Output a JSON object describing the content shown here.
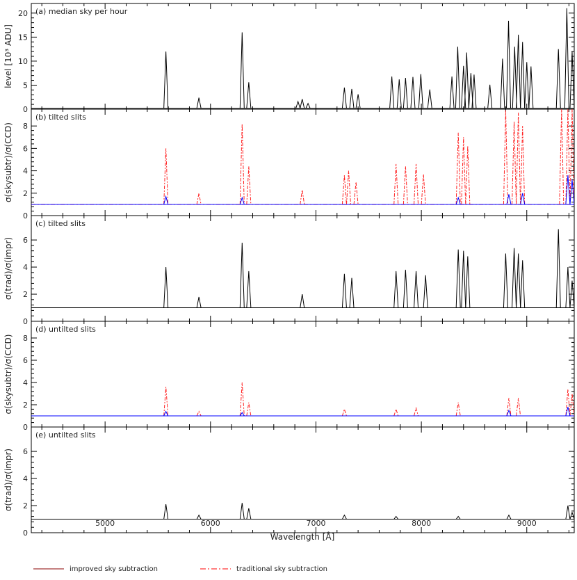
{
  "chart_data": {
    "type": "line",
    "xlabel": "Wavelength [Å]",
    "xlim": [
      4300,
      9450
    ],
    "x_ticks": [
      "5000",
      "6000",
      "7000",
      "8000",
      "9000"
    ],
    "legend": [
      {
        "label": "improved sky subtraction",
        "color": "#8b0000",
        "style": "solid"
      },
      {
        "label": "traditional sky subtraction",
        "color": "#ff0000",
        "style": "dash-dot"
      }
    ],
    "panels": [
      {
        "label": "(a) median sky per hour",
        "ylabel": "level [10³ ADU]",
        "ylim": [
          0,
          22
        ],
        "y_ticks": [
          "0",
          "5",
          "10",
          "15",
          "20"
        ],
        "continuum": 0.2,
        "series": [
          {
            "color": "#000000",
            "lines": [
              [
                5577,
                12.0
              ],
              [
                5890,
                2.4
              ],
              [
                6300,
                16.0
              ],
              [
                6363,
                5.6
              ],
              [
                6830,
                1.6
              ],
              [
                6870,
                2.1
              ],
              [
                6925,
                1.2
              ],
              [
                7270,
                4.5
              ],
              [
                7340,
                4.2
              ],
              [
                7400,
                3.1
              ],
              [
                7720,
                6.8
              ],
              [
                7790,
                6.2
              ],
              [
                7850,
                6.5
              ],
              [
                7920,
                6.7
              ],
              [
                7995,
                7.3
              ],
              [
                8080,
                4.1
              ],
              [
                8290,
                6.8
              ],
              [
                8345,
                13.0
              ],
              [
                8400,
                9.0
              ],
              [
                8430,
                11.8
              ],
              [
                8470,
                7.5
              ],
              [
                8500,
                7.2
              ],
              [
                8650,
                5.1
              ],
              [
                8770,
                10.5
              ],
              [
                8827,
                18.4
              ],
              [
                8885,
                13.0
              ],
              [
                8920,
                15.5
              ],
              [
                8960,
                14.0
              ],
              [
                9000,
                9.8
              ],
              [
                9040,
                8.9
              ],
              [
                9300,
                12.5
              ],
              [
                9380,
                21.0
              ],
              [
                9430,
                12.0
              ]
            ]
          }
        ]
      },
      {
        "label": "(b) tilted slits",
        "ylabel": "σ(skysubtr)/σ(CCD)",
        "ylim": [
          0,
          9.5
        ],
        "y_ticks": [
          "0",
          "2",
          "4",
          "6",
          "8"
        ],
        "continuum": 1.0,
        "series": [
          {
            "color": "#ff2020",
            "dash": "6,3,2,3",
            "lines": [
              [
                5577,
                6.0
              ],
              [
                5890,
                2.0
              ],
              [
                6300,
                8.2
              ],
              [
                6363,
                4.4
              ],
              [
                6870,
                2.3
              ],
              [
                7270,
                3.6
              ],
              [
                7310,
                4.0
              ],
              [
                7380,
                3.0
              ],
              [
                7760,
                4.6
              ],
              [
                7850,
                4.4
              ],
              [
                7950,
                4.6
              ],
              [
                8020,
                3.7
              ],
              [
                8350,
                7.4
              ],
              [
                8400,
                7.0
              ],
              [
                8440,
                6.2
              ],
              [
                8800,
                9.4
              ],
              [
                8880,
                8.4
              ],
              [
                8920,
                9.2
              ],
              [
                8960,
                8.0
              ],
              [
                9330,
                9.5
              ],
              [
                9390,
                9.5
              ],
              [
                9430,
                9.5
              ]
            ]
          },
          {
            "color": "#0000ff",
            "lines": [
              [
                5577,
                1.7
              ],
              [
                6300,
                1.6
              ],
              [
                8350,
                1.6
              ],
              [
                8830,
                1.9
              ],
              [
                8960,
                2.0
              ],
              [
                9390,
                3.6
              ],
              [
                9430,
                3.2
              ]
            ]
          }
        ]
      },
      {
        "label": "(c) tilted slits",
        "ylabel": "σ(trad)/σ(impr)",
        "ylim": [
          0,
          7.8
        ],
        "y_ticks": [
          "0",
          "2",
          "4",
          "6"
        ],
        "continuum": 1.0,
        "series": [
          {
            "color": "#000000",
            "lines": [
              [
                5577,
                4.0
              ],
              [
                5890,
                1.8
              ],
              [
                6300,
                5.8
              ],
              [
                6363,
                3.7
              ],
              [
                6870,
                2.0
              ],
              [
                7270,
                3.5
              ],
              [
                7340,
                3.2
              ],
              [
                7760,
                3.7
              ],
              [
                7850,
                3.8
              ],
              [
                7950,
                3.7
              ],
              [
                8040,
                3.4
              ],
              [
                8350,
                5.3
              ],
              [
                8400,
                5.2
              ],
              [
                8440,
                4.8
              ],
              [
                8800,
                5.0
              ],
              [
                8880,
                5.4
              ],
              [
                8920,
                5.0
              ],
              [
                8960,
                4.5
              ],
              [
                9300,
                6.8
              ],
              [
                9390,
                4.0
              ],
              [
                9430,
                3.0
              ]
            ]
          }
        ]
      },
      {
        "label": "(d) untilted slits",
        "ylabel": "σ(skysubtr)/σ(CCD)",
        "ylim": [
          0,
          9.5
        ],
        "y_ticks": [
          "0",
          "2",
          "4",
          "6",
          "8"
        ],
        "continuum": 1.0,
        "series": [
          {
            "color": "#ff2020",
            "dash": "6,3,2,3",
            "lines": [
              [
                5577,
                3.6
              ],
              [
                5890,
                1.4
              ],
              [
                6300,
                4.0
              ],
              [
                6363,
                2.2
              ],
              [
                7270,
                1.6
              ],
              [
                7760,
                1.6
              ],
              [
                7950,
                1.7
              ],
              [
                8350,
                2.2
              ],
              [
                8830,
                2.6
              ],
              [
                8920,
                2.6
              ],
              [
                9390,
                3.4
              ],
              [
                9430,
                3.0
              ]
            ]
          },
          {
            "color": "#0000ff",
            "lines": [
              [
                5577,
                1.4
              ],
              [
                6300,
                1.3
              ],
              [
                8830,
                1.5
              ],
              [
                9390,
                1.8
              ]
            ]
          }
        ]
      },
      {
        "label": "(e) untilted slits",
        "ylabel": "σ(trad)/σ(impr)",
        "ylim": [
          0,
          7.8
        ],
        "y_ticks": [
          "0",
          "2",
          "4",
          "6"
        ],
        "continuum": 1.0,
        "series": [
          {
            "color": "#000000",
            "lines": [
              [
                5577,
                2.1
              ],
              [
                5890,
                1.3
              ],
              [
                6300,
                2.2
              ],
              [
                6363,
                1.8
              ],
              [
                7270,
                1.3
              ],
              [
                7760,
                1.2
              ],
              [
                8350,
                1.2
              ],
              [
                8830,
                1.3
              ],
              [
                9390,
                2.0
              ],
              [
                9430,
                1.5
              ]
            ]
          }
        ]
      }
    ]
  }
}
